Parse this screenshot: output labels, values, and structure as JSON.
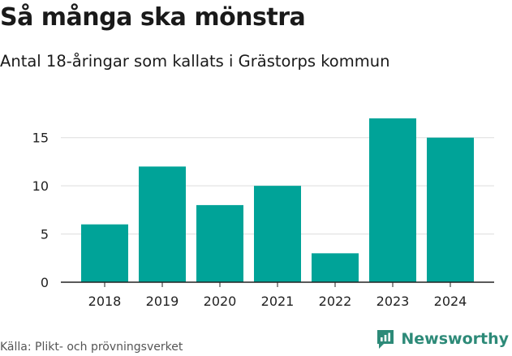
{
  "header": {
    "title": "Så många ska mönstra",
    "subtitle": "Antal 18-åringar som kallats i Grästorps kommun"
  },
  "footer": {
    "source": "Källa: Plikt- och prövningsverket",
    "brand": "Newsworthy"
  },
  "colors": {
    "bar": "#00a398",
    "grid": "#dddddd",
    "axis": "#222222",
    "brand": "#2d8a78"
  },
  "chart_data": {
    "type": "bar",
    "title": "Så många ska mönstra",
    "subtitle": "Antal 18-åringar som kallats i Grästorps kommun",
    "categories": [
      "2018",
      "2019",
      "2020",
      "2021",
      "2022",
      "2023",
      "2024"
    ],
    "values": [
      6,
      12,
      8,
      10,
      3,
      17,
      15
    ],
    "yticks": [
      0,
      5,
      10,
      15
    ],
    "ylim": [
      0,
      17.5
    ],
    "xlabel": "",
    "ylabel": "",
    "grid": true
  }
}
